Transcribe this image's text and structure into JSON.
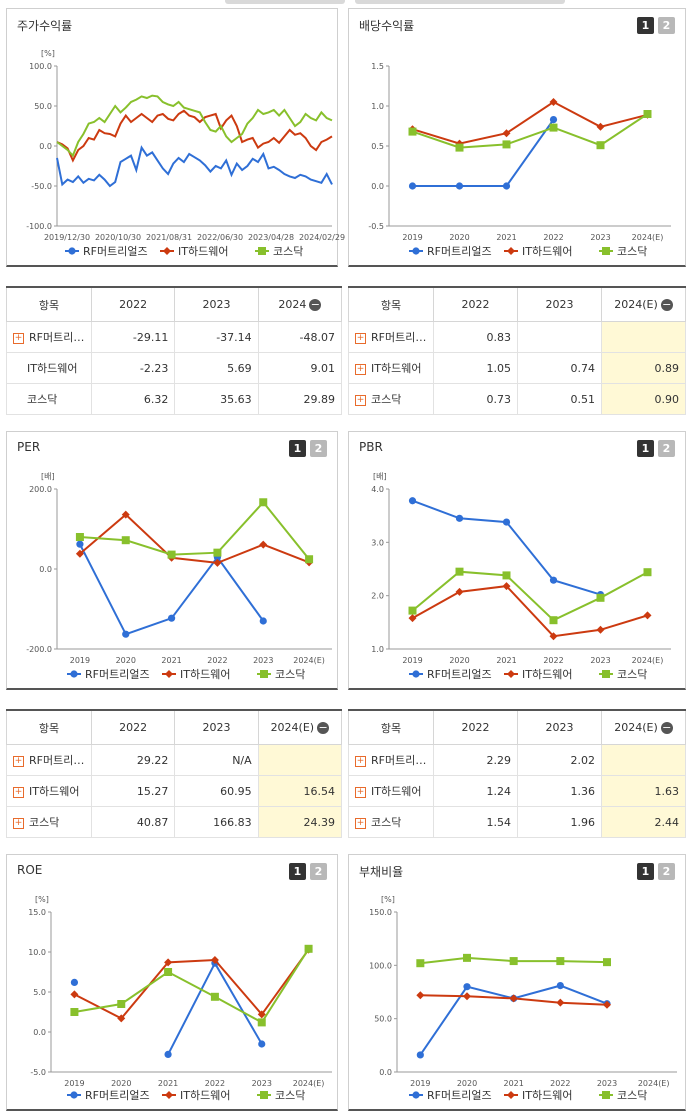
{
  "colors": {
    "rf": "#2f6fd6",
    "it": "#cc3a10",
    "kosdaq": "#88c02c"
  },
  "legend": [
    "RF머트리얼즈",
    "IT하드웨어",
    "코스닥"
  ],
  "panels": {
    "stock": {
      "title": "주가수익률",
      "unit": "[%]"
    },
    "dividend": {
      "title": "배당수익률",
      "unit": ""
    },
    "per": {
      "title": "PER",
      "unit": "[배]"
    },
    "pbr": {
      "title": "PBR",
      "unit": "[배]"
    },
    "roe": {
      "title": "ROE",
      "unit": "[%]"
    },
    "debt": {
      "title": "부채비율",
      "unit": "[%]"
    }
  },
  "pager": {
    "one": "1",
    "two": "2"
  },
  "tables": {
    "stock": {
      "head": [
        "항목",
        "2022",
        "2023",
        "2024"
      ],
      "rows": [
        {
          "name": "RF머트리…",
          "v": [
            "-29.11",
            "-37.14",
            "-48.07"
          ]
        },
        {
          "name": "IT하드웨어",
          "v": [
            "-2.23",
            "5.69",
            "9.01"
          ]
        },
        {
          "name": "코스닥",
          "v": [
            "6.32",
            "35.63",
            "29.89"
          ]
        }
      ]
    },
    "dividend": {
      "head": [
        "항목",
        "2022",
        "2023",
        "2024(E)"
      ],
      "rows": [
        {
          "name": "RF머트리…",
          "v": [
            "0.83",
            "",
            ""
          ]
        },
        {
          "name": "IT하드웨어",
          "v": [
            "1.05",
            "0.74",
            "0.89"
          ]
        },
        {
          "name": "코스닥",
          "v": [
            "0.73",
            "0.51",
            "0.90"
          ]
        }
      ]
    },
    "per": {
      "head": [
        "항목",
        "2022",
        "2023",
        "2024(E)"
      ],
      "rows": [
        {
          "name": "RF머트리…",
          "v": [
            "29.22",
            "N/A",
            ""
          ]
        },
        {
          "name": "IT하드웨어",
          "v": [
            "15.27",
            "60.95",
            "16.54"
          ]
        },
        {
          "name": "코스닥",
          "v": [
            "40.87",
            "166.83",
            "24.39"
          ]
        }
      ]
    },
    "pbr": {
      "head": [
        "항목",
        "2022",
        "2023",
        "2024(E)"
      ],
      "rows": [
        {
          "name": "RF머트리…",
          "v": [
            "2.29",
            "2.02",
            ""
          ]
        },
        {
          "name": "IT하드웨어",
          "v": [
            "1.24",
            "1.36",
            "1.63"
          ]
        },
        {
          "name": "코스닥",
          "v": [
            "1.54",
            "1.96",
            "2.44"
          ]
        }
      ]
    }
  },
  "chart_data": [
    {
      "id": "stock",
      "type": "line",
      "title": "주가수익률",
      "ylabel": "[%]",
      "ylim": [
        -100,
        100
      ],
      "yticks": [
        "100.0",
        "50.0",
        "0.0",
        "-50.0",
        "-100.0"
      ],
      "xticks": [
        "2019/12/30",
        "2020/10/30",
        "2021/08/31",
        "2022/06/30",
        "2023/04/28",
        "2024/02/29"
      ],
      "series": [
        {
          "name": "RF머트리얼즈",
          "values": [
            -15,
            -48,
            -42,
            -45,
            -38,
            -46,
            -41,
            -43,
            -36,
            -42,
            -50,
            -45,
            -20,
            -16,
            -12,
            -30,
            -2,
            -12,
            -8,
            -18,
            -28,
            -35,
            -22,
            -15,
            -20,
            -10,
            -14,
            -18,
            -24,
            -32,
            -25,
            -28,
            -18,
            -36,
            -22,
            -30,
            -25,
            -16,
            -20,
            -10,
            -28,
            -26,
            -30,
            -35,
            -38,
            -40,
            -36,
            -38,
            -42,
            -44,
            -46,
            -35,
            -48
          ]
        },
        {
          "name": "IT하드웨어",
          "values": [
            5,
            2,
            -3,
            -18,
            -5,
            0,
            10,
            8,
            20,
            16,
            15,
            12,
            28,
            38,
            30,
            35,
            40,
            35,
            30,
            38,
            40,
            34,
            32,
            40,
            44,
            38,
            36,
            30,
            36,
            38,
            40,
            22,
            32,
            38,
            25,
            5,
            8,
            10,
            -2,
            3,
            5,
            10,
            4,
            12,
            20,
            14,
            16,
            10,
            0,
            -5,
            5,
            8,
            12
          ]
        },
        {
          "name": "코스닥",
          "values": [
            5,
            0,
            -5,
            -12,
            5,
            15,
            28,
            30,
            35,
            30,
            40,
            50,
            42,
            48,
            55,
            58,
            62,
            60,
            63,
            62,
            55,
            52,
            50,
            55,
            48,
            46,
            44,
            42,
            30,
            20,
            18,
            25,
            12,
            5,
            10,
            15,
            28,
            35,
            45,
            40,
            42,
            45,
            38,
            45,
            35,
            25,
            30,
            40,
            35,
            32,
            42,
            35,
            32
          ]
        }
      ]
    },
    {
      "id": "dividend",
      "type": "line",
      "title": "배당수익률",
      "ylim": [
        -0.5,
        1.5
      ],
      "yticks": [
        "1.5",
        "1.0",
        "0.5",
        "0.0",
        "-0.5"
      ],
      "categories": [
        "2019",
        "2020",
        "2021",
        "2022",
        "2023",
        "2024(E)"
      ],
      "series": [
        {
          "name": "RF머트리얼즈",
          "values": [
            0.0,
            0.0,
            0.0,
            0.83,
            null,
            null
          ]
        },
        {
          "name": "IT하드웨어",
          "values": [
            0.71,
            0.53,
            0.66,
            1.05,
            0.74,
            0.89
          ]
        },
        {
          "name": "코스닥",
          "values": [
            0.68,
            0.48,
            0.52,
            0.73,
            0.51,
            0.9
          ]
        }
      ]
    },
    {
      "id": "per",
      "type": "line",
      "title": "PER",
      "ylabel": "[배]",
      "ylim": [
        -200,
        200
      ],
      "yticks": [
        "200.0",
        "0.0",
        "-200.0"
      ],
      "categories": [
        "2019",
        "2020",
        "2021",
        "2022",
        "2023",
        "2024(E)"
      ],
      "series": [
        {
          "name": "RF머트리얼즈",
          "values": [
            62,
            -163,
            -123,
            29.22,
            -130,
            null
          ]
        },
        {
          "name": "IT하드웨어",
          "values": [
            38,
            136,
            28,
            15.27,
            60.95,
            16.54
          ]
        },
        {
          "name": "코스닥",
          "values": [
            80,
            72,
            36,
            40.87,
            166.83,
            24.39
          ]
        }
      ]
    },
    {
      "id": "pbr",
      "type": "line",
      "title": "PBR",
      "ylabel": "[배]",
      "ylim": [
        1.0,
        4.0
      ],
      "yticks": [
        "4.0",
        "3.0",
        "2.0",
        "1.0"
      ],
      "categories": [
        "2019",
        "2020",
        "2021",
        "2022",
        "2023",
        "2024(E)"
      ],
      "series": [
        {
          "name": "RF머트리얼즈",
          "values": [
            3.78,
            3.45,
            3.38,
            2.29,
            2.02,
            null
          ]
        },
        {
          "name": "IT하드웨어",
          "values": [
            1.58,
            2.07,
            2.18,
            1.24,
            1.36,
            1.63
          ]
        },
        {
          "name": "코스닥",
          "values": [
            1.72,
            2.45,
            2.38,
            1.54,
            1.96,
            2.44
          ]
        }
      ]
    },
    {
      "id": "roe",
      "type": "line",
      "title": "ROE",
      "ylabel": "[%]",
      "ylim": [
        -5,
        15
      ],
      "yticks": [
        "15.0",
        "10.0",
        "5.0",
        "0.0",
        "-5.0"
      ],
      "categories": [
        "2019",
        "2020",
        "2021",
        "2022",
        "2023",
        "2024(E)"
      ],
      "series": [
        {
          "name": "RF머트리얼즈",
          "values": [
            6.2,
            null,
            -2.8,
            8.6,
            -1.5,
            null
          ]
        },
        {
          "name": "IT하드웨어",
          "values": [
            4.7,
            1.7,
            8.7,
            9.0,
            2.2,
            10.3
          ]
        },
        {
          "name": "코스닥",
          "values": [
            2.5,
            3.5,
            7.5,
            4.4,
            1.2,
            10.4
          ]
        }
      ]
    },
    {
      "id": "debt",
      "type": "line",
      "title": "부채비율",
      "ylabel": "[%]",
      "ylim": [
        0,
        150
      ],
      "yticks": [
        "150.0",
        "100.0",
        "50.0",
        "0.0"
      ],
      "categories": [
        "2019",
        "2020",
        "2021",
        "2022",
        "2023",
        "2024(E)"
      ],
      "series": [
        {
          "name": "RF머트리얼즈",
          "values": [
            16,
            80,
            69,
            81,
            64,
            null
          ]
        },
        {
          "name": "IT하드웨어",
          "values": [
            72,
            71,
            69,
            65,
            63,
            null
          ]
        },
        {
          "name": "코스닥",
          "values": [
            102,
            107,
            104,
            104,
            103,
            null
          ]
        }
      ]
    }
  ]
}
